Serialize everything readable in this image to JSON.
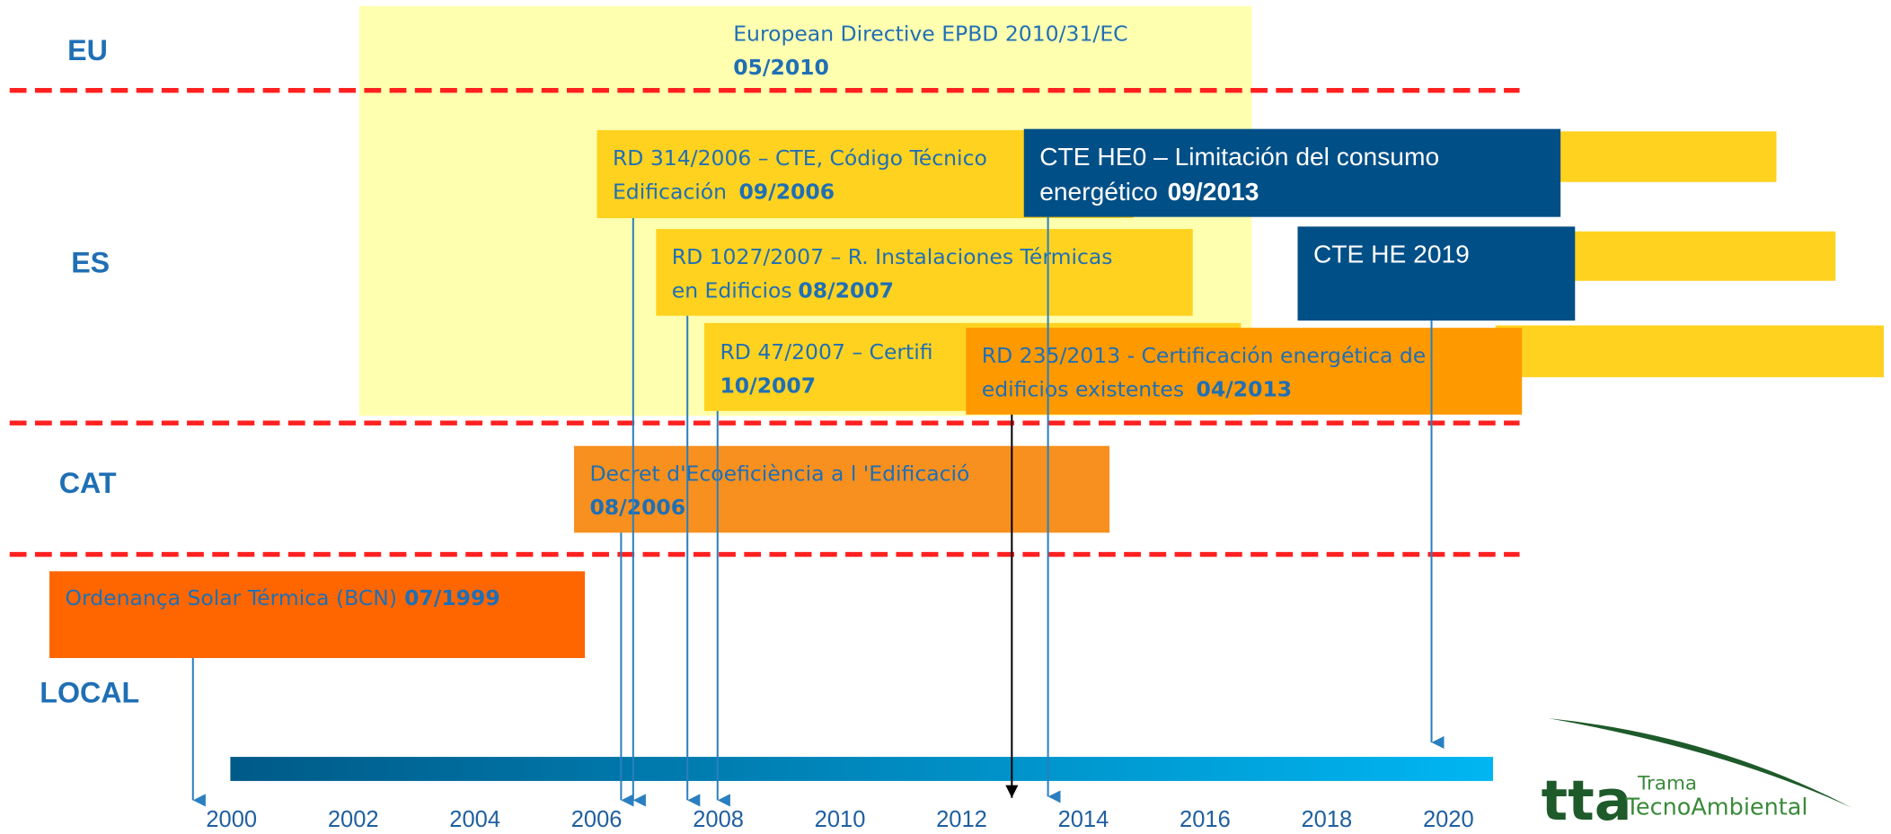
{
  "levels": [
    "EU",
    "ES",
    "CAT",
    "LOCAL"
  ],
  "boxes": [
    {
      "text": "European Directive EPBD 2010/31/EC",
      "date": "05/2010"
    },
    {
      "text": "RD 314/2006 – CTE, Código Técnico",
      "text2": "Edificación",
      "date": "09/2006"
    },
    {
      "text": "RD 1027/2007 – R. Instalaciones Térmicas",
      "text2": "en Edificios",
      "date": "08/2007"
    },
    {
      "text": "RD 47/2007 – Certifi",
      "date": "10/2007"
    },
    {
      "text": "RD 235/2013 - Certificación energética de",
      "text2": "edificios existentes",
      "date": "04/2013"
    },
    {
      "text": "CTE HE0 – Limitación del consumo",
      "text2": "energético",
      "date": "09/2013"
    },
    {
      "text": "CTE HE 2019"
    },
    {
      "text": "Decret d'Ecoeficiència a l 'Edificació",
      "date": "08/2006"
    },
    {
      "text": "Ordenança Solar Térmica (BCN)",
      "date": "07/1999"
    }
  ],
  "years": [
    "2000",
    "2002",
    "2004",
    "2006",
    "2008",
    "2010",
    "2012",
    "2014",
    "2016",
    "2018",
    "2020"
  ],
  "logo": {
    "brand": "tta",
    "line1": "Trama",
    "line2": "TecnoAmbiental"
  }
}
